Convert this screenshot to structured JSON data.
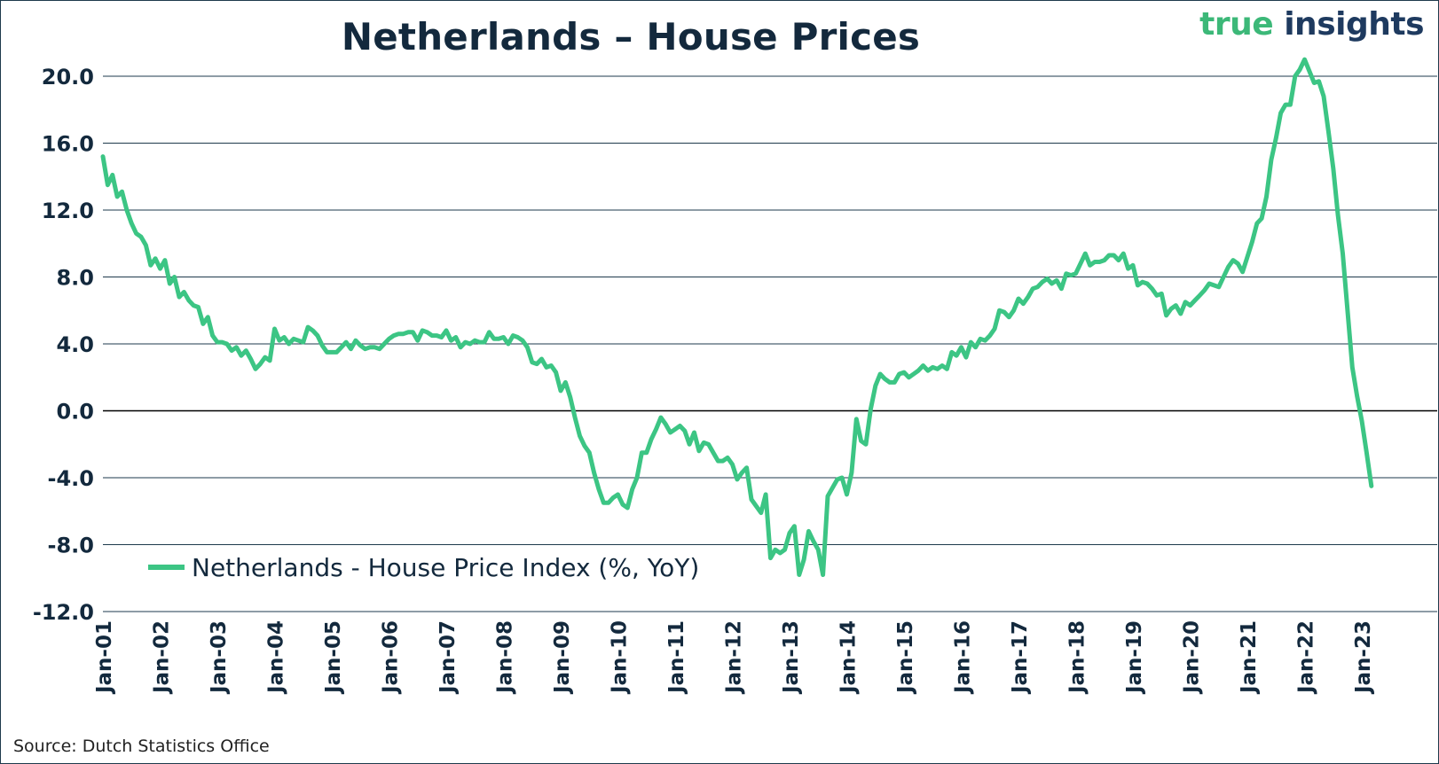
{
  "title": "Netherlands – House Prices",
  "logo": {
    "part1": "true",
    "part2": "insights"
  },
  "source": "Source: Dutch Statistics Office",
  "colors": {
    "series": "#3cc584",
    "title": "#13293d",
    "grid": "#1e3a4c",
    "logo_green": "#3cb878",
    "logo_navy": "#1e3a5f"
  },
  "chart_data": {
    "type": "line",
    "title": "Netherlands – House Prices",
    "xlabel": "",
    "ylabel": "",
    "ylim": [
      -12,
      20
    ],
    "y_ticks": [
      "20.0",
      "16.0",
      "12.0",
      "8.0",
      "4.0",
      "0.0",
      "-4.0",
      "-8.0",
      "-12.0"
    ],
    "x_ticks": [
      "Jan-01",
      "Jan-02",
      "Jan-03",
      "Jan-04",
      "Jan-05",
      "Jan-06",
      "Jan-07",
      "Jan-08",
      "Jan-09",
      "Jan-10",
      "Jan-11",
      "Jan-12",
      "Jan-13",
      "Jan-14",
      "Jan-15",
      "Jan-16",
      "Jan-17",
      "Jan-18",
      "Jan-19",
      "Jan-20",
      "Jan-21",
      "Jan-22",
      "Jan-23"
    ],
    "grid": true,
    "legend_position": "bottom-left",
    "series": [
      {
        "name": "Netherlands - House Price Index (%, YoY)",
        "points": [
          [
            "2001-01",
            15.2
          ],
          [
            "2001-02",
            13.5
          ],
          [
            "2001-03",
            14.1
          ],
          [
            "2001-04",
            12.8
          ],
          [
            "2001-05",
            13.1
          ],
          [
            "2001-06",
            12.0
          ],
          [
            "2001-07",
            11.2
          ],
          [
            "2001-08",
            10.6
          ],
          [
            "2001-09",
            10.4
          ],
          [
            "2001-10",
            9.9
          ],
          [
            "2001-11",
            8.7
          ],
          [
            "2001-12",
            9.1
          ],
          [
            "2002-01",
            8.5
          ],
          [
            "2002-02",
            9.0
          ],
          [
            "2002-03",
            7.6
          ],
          [
            "2002-04",
            8.0
          ],
          [
            "2002-05",
            6.8
          ],
          [
            "2002-06",
            7.1
          ],
          [
            "2002-07",
            6.6
          ],
          [
            "2002-08",
            6.3
          ],
          [
            "2002-09",
            6.2
          ],
          [
            "2002-10",
            5.2
          ],
          [
            "2002-11",
            5.6
          ],
          [
            "2002-12",
            4.5
          ],
          [
            "2003-01",
            4.1
          ],
          [
            "2003-02",
            4.1
          ],
          [
            "2003-03",
            4.0
          ],
          [
            "2003-04",
            3.6
          ],
          [
            "2003-05",
            3.8
          ],
          [
            "2003-06",
            3.3
          ],
          [
            "2003-07",
            3.6
          ],
          [
            "2003-08",
            3.1
          ],
          [
            "2003-09",
            2.5
          ],
          [
            "2003-10",
            2.8
          ],
          [
            "2003-11",
            3.2
          ],
          [
            "2003-12",
            3.0
          ],
          [
            "2004-01",
            4.9
          ],
          [
            "2004-02",
            4.2
          ],
          [
            "2004-03",
            4.4
          ],
          [
            "2004-04",
            4.0
          ],
          [
            "2004-05",
            4.3
          ],
          [
            "2004-06",
            4.2
          ],
          [
            "2004-07",
            4.1
          ],
          [
            "2004-08",
            5.0
          ],
          [
            "2004-09",
            4.8
          ],
          [
            "2004-10",
            4.5
          ],
          [
            "2004-11",
            3.9
          ],
          [
            "2004-12",
            3.5
          ],
          [
            "2005-01",
            3.5
          ],
          [
            "2005-02",
            3.5
          ],
          [
            "2005-03",
            3.8
          ],
          [
            "2005-04",
            4.1
          ],
          [
            "2005-05",
            3.7
          ],
          [
            "2005-06",
            4.2
          ],
          [
            "2005-07",
            3.9
          ],
          [
            "2005-08",
            3.7
          ],
          [
            "2005-09",
            3.8
          ],
          [
            "2005-10",
            3.8
          ],
          [
            "2005-11",
            3.7
          ],
          [
            "2005-12",
            4.0
          ],
          [
            "2006-01",
            4.3
          ],
          [
            "2006-02",
            4.5
          ],
          [
            "2006-03",
            4.6
          ],
          [
            "2006-04",
            4.6
          ],
          [
            "2006-05",
            4.7
          ],
          [
            "2006-06",
            4.7
          ],
          [
            "2006-07",
            4.2
          ],
          [
            "2006-08",
            4.8
          ],
          [
            "2006-09",
            4.7
          ],
          [
            "2006-10",
            4.5
          ],
          [
            "2006-11",
            4.5
          ],
          [
            "2006-12",
            4.4
          ],
          [
            "2007-01",
            4.8
          ],
          [
            "2007-02",
            4.2
          ],
          [
            "2007-03",
            4.4
          ],
          [
            "2007-04",
            3.8
          ],
          [
            "2007-05",
            4.1
          ],
          [
            "2007-06",
            4.0
          ],
          [
            "2007-07",
            4.2
          ],
          [
            "2007-08",
            4.1
          ],
          [
            "2007-09",
            4.1
          ],
          [
            "2007-10",
            4.7
          ],
          [
            "2007-11",
            4.3
          ],
          [
            "2007-12",
            4.3
          ],
          [
            "2008-01",
            4.4
          ],
          [
            "2008-02",
            4.0
          ],
          [
            "2008-03",
            4.5
          ],
          [
            "2008-04",
            4.4
          ],
          [
            "2008-05",
            4.2
          ],
          [
            "2008-06",
            3.8
          ],
          [
            "2008-07",
            2.9
          ],
          [
            "2008-08",
            2.8
          ],
          [
            "2008-09",
            3.1
          ],
          [
            "2008-10",
            2.6
          ],
          [
            "2008-11",
            2.7
          ],
          [
            "2008-12",
            2.3
          ],
          [
            "2009-01",
            1.2
          ],
          [
            "2009-02",
            1.7
          ],
          [
            "2009-03",
            0.8
          ],
          [
            "2009-04",
            -0.4
          ],
          [
            "2009-05",
            -1.5
          ],
          [
            "2009-06",
            -2.1
          ],
          [
            "2009-07",
            -2.5
          ],
          [
            "2009-08",
            -3.7
          ],
          [
            "2009-09",
            -4.7
          ],
          [
            "2009-10",
            -5.5
          ],
          [
            "2009-11",
            -5.5
          ],
          [
            "2009-12",
            -5.2
          ],
          [
            "2010-01",
            -5.0
          ],
          [
            "2010-02",
            -5.6
          ],
          [
            "2010-03",
            -5.8
          ],
          [
            "2010-04",
            -4.7
          ],
          [
            "2010-05",
            -4.0
          ],
          [
            "2010-06",
            -2.5
          ],
          [
            "2010-07",
            -2.5
          ],
          [
            "2010-08",
            -1.7
          ],
          [
            "2010-09",
            -1.1
          ],
          [
            "2010-10",
            -0.4
          ],
          [
            "2010-11",
            -0.8
          ],
          [
            "2010-12",
            -1.3
          ],
          [
            "2011-01",
            -1.1
          ],
          [
            "2011-02",
            -0.9
          ],
          [
            "2011-03",
            -1.2
          ],
          [
            "2011-04",
            -2.0
          ],
          [
            "2011-05",
            -1.3
          ],
          [
            "2011-06",
            -2.4
          ],
          [
            "2011-07",
            -1.9
          ],
          [
            "2011-08",
            -2.0
          ],
          [
            "2011-09",
            -2.5
          ],
          [
            "2011-10",
            -3.0
          ],
          [
            "2011-11",
            -3.0
          ],
          [
            "2011-12",
            -2.8
          ],
          [
            "2012-01",
            -3.2
          ],
          [
            "2012-02",
            -4.1
          ],
          [
            "2012-03",
            -3.7
          ],
          [
            "2012-04",
            -3.4
          ],
          [
            "2012-05",
            -5.3
          ],
          [
            "2012-06",
            -5.7
          ],
          [
            "2012-07",
            -6.1
          ],
          [
            "2012-08",
            -5.0
          ],
          [
            "2012-09",
            -8.8
          ],
          [
            "2012-10",
            -8.3
          ],
          [
            "2012-11",
            -8.5
          ],
          [
            "2012-12",
            -8.3
          ],
          [
            "2013-01",
            -7.3
          ],
          [
            "2013-02",
            -6.9
          ],
          [
            "2013-03",
            -9.8
          ],
          [
            "2013-04",
            -8.9
          ],
          [
            "2013-05",
            -7.2
          ],
          [
            "2013-06",
            -7.8
          ],
          [
            "2013-07",
            -8.3
          ],
          [
            "2013-08",
            -9.8
          ],
          [
            "2013-09",
            -5.1
          ],
          [
            "2013-10",
            -4.6
          ],
          [
            "2013-11",
            -4.1
          ],
          [
            "2013-12",
            -4.0
          ],
          [
            "2014-01",
            -5.0
          ],
          [
            "2014-02",
            -3.7
          ],
          [
            "2014-03",
            -0.5
          ],
          [
            "2014-04",
            -1.8
          ],
          [
            "2014-05",
            -2.0
          ],
          [
            "2014-06",
            0.1
          ],
          [
            "2014-07",
            1.5
          ],
          [
            "2014-08",
            2.2
          ],
          [
            "2014-09",
            1.9
          ],
          [
            "2014-10",
            1.7
          ],
          [
            "2014-11",
            1.7
          ],
          [
            "2014-12",
            2.2
          ],
          [
            "2015-01",
            2.3
          ],
          [
            "2015-02",
            2.0
          ],
          [
            "2015-03",
            2.2
          ],
          [
            "2015-04",
            2.4
          ],
          [
            "2015-05",
            2.7
          ],
          [
            "2015-06",
            2.4
          ],
          [
            "2015-07",
            2.6
          ],
          [
            "2015-08",
            2.5
          ],
          [
            "2015-09",
            2.7
          ],
          [
            "2015-10",
            2.5
          ],
          [
            "2015-11",
            3.5
          ],
          [
            "2015-12",
            3.3
          ],
          [
            "2016-01",
            3.8
          ],
          [
            "2016-02",
            3.2
          ],
          [
            "2016-03",
            4.1
          ],
          [
            "2016-04",
            3.8
          ],
          [
            "2016-05",
            4.3
          ],
          [
            "2016-06",
            4.2
          ],
          [
            "2016-07",
            4.5
          ],
          [
            "2016-08",
            4.9
          ],
          [
            "2016-09",
            6.0
          ],
          [
            "2016-10",
            5.9
          ],
          [
            "2016-11",
            5.6
          ],
          [
            "2016-12",
            6.0
          ],
          [
            "2017-01",
            6.7
          ],
          [
            "2017-02",
            6.4
          ],
          [
            "2017-03",
            6.8
          ],
          [
            "2017-04",
            7.3
          ],
          [
            "2017-05",
            7.4
          ],
          [
            "2017-06",
            7.7
          ],
          [
            "2017-07",
            7.9
          ],
          [
            "2017-08",
            7.6
          ],
          [
            "2017-09",
            7.8
          ],
          [
            "2017-10",
            7.3
          ],
          [
            "2017-11",
            8.2
          ],
          [
            "2017-12",
            8.1
          ],
          [
            "2018-01",
            8.2
          ],
          [
            "2018-02",
            8.8
          ],
          [
            "2018-03",
            9.4
          ],
          [
            "2018-04",
            8.7
          ],
          [
            "2018-05",
            8.9
          ],
          [
            "2018-06",
            8.9
          ],
          [
            "2018-07",
            9.0
          ],
          [
            "2018-08",
            9.3
          ],
          [
            "2018-09",
            9.3
          ],
          [
            "2018-10",
            9.0
          ],
          [
            "2018-11",
            9.4
          ],
          [
            "2018-12",
            8.5
          ],
          [
            "2019-01",
            8.7
          ],
          [
            "2019-02",
            7.5
          ],
          [
            "2019-03",
            7.7
          ],
          [
            "2019-04",
            7.6
          ],
          [
            "2019-05",
            7.3
          ],
          [
            "2019-06",
            6.9
          ],
          [
            "2019-07",
            7.0
          ],
          [
            "2019-08",
            5.7
          ],
          [
            "2019-09",
            6.1
          ],
          [
            "2019-10",
            6.3
          ],
          [
            "2019-11",
            5.8
          ],
          [
            "2019-12",
            6.5
          ],
          [
            "2020-01",
            6.3
          ],
          [
            "2020-02",
            6.6
          ],
          [
            "2020-03",
            6.9
          ],
          [
            "2020-04",
            7.2
          ],
          [
            "2020-05",
            7.6
          ],
          [
            "2020-06",
            7.5
          ],
          [
            "2020-07",
            7.4
          ],
          [
            "2020-08",
            8.0
          ],
          [
            "2020-09",
            8.6
          ],
          [
            "2020-10",
            9.0
          ],
          [
            "2020-11",
            8.8
          ],
          [
            "2020-12",
            8.3
          ],
          [
            "2021-01",
            9.2
          ],
          [
            "2021-02",
            10.1
          ],
          [
            "2021-03",
            11.2
          ],
          [
            "2021-04",
            11.5
          ],
          [
            "2021-05",
            12.8
          ],
          [
            "2021-06",
            15.0
          ],
          [
            "2021-07",
            16.3
          ],
          [
            "2021-08",
            17.8
          ],
          [
            "2021-09",
            18.3
          ],
          [
            "2021-10",
            18.3
          ],
          [
            "2021-11",
            20.0
          ],
          [
            "2021-12",
            20.4
          ],
          [
            "2022-01",
            21.0
          ],
          [
            "2022-02",
            20.3
          ],
          [
            "2022-03",
            19.6
          ],
          [
            "2022-04",
            19.7
          ],
          [
            "2022-05",
            18.8
          ],
          [
            "2022-06",
            16.7
          ],
          [
            "2022-07",
            14.5
          ],
          [
            "2022-08",
            11.7
          ],
          [
            "2022-09",
            9.4
          ],
          [
            "2022-10",
            6.0
          ],
          [
            "2022-11",
            2.6
          ],
          [
            "2022-12",
            0.9
          ],
          [
            "2023-01",
            -0.6
          ],
          [
            "2023-02",
            -2.5
          ],
          [
            "2023-03",
            -4.5
          ]
        ]
      }
    ]
  }
}
